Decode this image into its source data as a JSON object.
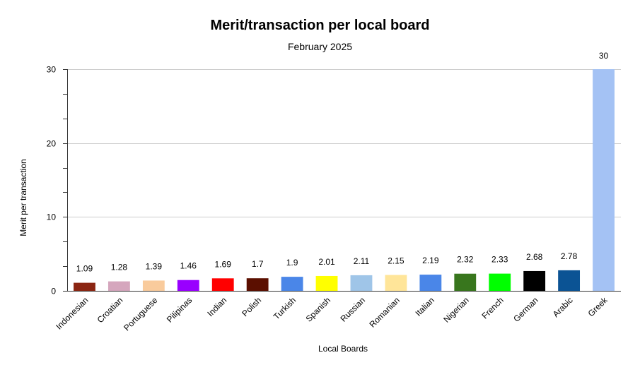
{
  "chart_data": {
    "type": "bar",
    "title": "Merit/transaction per local board",
    "subtitle": "February 2025",
    "xlabel": "Local Boards",
    "ylabel": "Merit per transaction",
    "categories": [
      "Indonesian",
      "Croatian",
      "Portuguese",
      "Pilipinas",
      "Indian",
      "Polish",
      "Turkish",
      "Spanish",
      "Russian",
      "Romanian",
      "Italian",
      "Nigerian",
      "French",
      "German",
      "Arabic",
      "Greek"
    ],
    "values": [
      1.09,
      1.28,
      1.39,
      1.46,
      1.69,
      1.7,
      1.9,
      2.01,
      2.11,
      2.15,
      2.19,
      2.32,
      2.33,
      2.68,
      2.78,
      30
    ],
    "data_labels": [
      "1.09",
      "1.28",
      "1.39",
      "1.46",
      "1.69",
      "1.7",
      "1.9",
      "2.01",
      "2.11",
      "2.15",
      "2.19",
      "2.32",
      "2.33",
      "2.68",
      "2.78",
      "30"
    ],
    "colors": [
      "#8b2512",
      "#d5a6bd",
      "#f9cb9c",
      "#9900ff",
      "#ff0000",
      "#5b0f00",
      "#4a86e8",
      "#ffff00",
      "#9fc5e8",
      "#ffe599",
      "#4a86e8",
      "#38761d",
      "#00ff00",
      "#000000",
      "#0b5394",
      "#a4c2f4"
    ],
    "ylim": [
      0,
      30
    ],
    "yticks": [
      0,
      10,
      20,
      30
    ],
    "grid": true,
    "legend": "none"
  }
}
